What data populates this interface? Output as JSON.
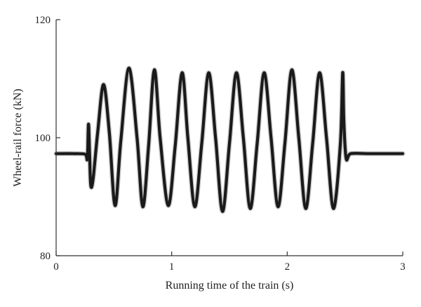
{
  "chart_data": {
    "type": "line",
    "title": "",
    "xlabel": "Running time of the train (s)",
    "ylabel": "Wheel-rail force (kN)",
    "xlim": [
      0,
      3
    ],
    "ylim": [
      80,
      120
    ],
    "xticks": [
      0,
      1,
      2,
      3
    ],
    "xtick_labels": [
      "0",
      "1",
      "2",
      "3"
    ],
    "yticks": [
      80,
      100,
      120
    ],
    "ytick_labels": [
      "80",
      "100",
      "120"
    ],
    "grid": false,
    "legend": "none",
    "series": [
      {
        "color": "#1a1a1a",
        "x": [
          0.0,
          0.15,
          0.25,
          0.27,
          0.28,
          0.29,
          0.3,
          0.32,
          0.36,
          0.41,
          0.46,
          0.51,
          0.56,
          0.63,
          0.7,
          0.75,
          0.8,
          0.85,
          0.9,
          0.97,
          1.03,
          1.09,
          1.14,
          1.2,
          1.26,
          1.32,
          1.38,
          1.44,
          1.5,
          1.56,
          1.62,
          1.68,
          1.74,
          1.8,
          1.86,
          1.92,
          1.98,
          2.04,
          2.1,
          2.16,
          2.22,
          2.28,
          2.34,
          2.4,
          2.46,
          2.48,
          2.49,
          2.51,
          2.55,
          2.7,
          2.85,
          3.0
        ],
        "y": [
          97.3,
          97.3,
          97.2,
          96.5,
          102.3,
          96.8,
          91.9,
          93.0,
          101.0,
          109.0,
          101.0,
          88.5,
          99.5,
          111.8,
          100.0,
          88.3,
          98.5,
          111.5,
          100.0,
          88.5,
          98.5,
          111.0,
          100.0,
          88.3,
          99.0,
          111.0,
          100.0,
          87.5,
          99.0,
          111.0,
          100.0,
          88.0,
          99.0,
          111.0,
          100.0,
          88.3,
          99.0,
          111.5,
          100.0,
          88.0,
          99.0,
          111.0,
          100.0,
          88.0,
          99.0,
          111.0,
          103.0,
          96.5,
          97.3,
          97.3,
          97.3,
          97.3
        ]
      }
    ]
  }
}
